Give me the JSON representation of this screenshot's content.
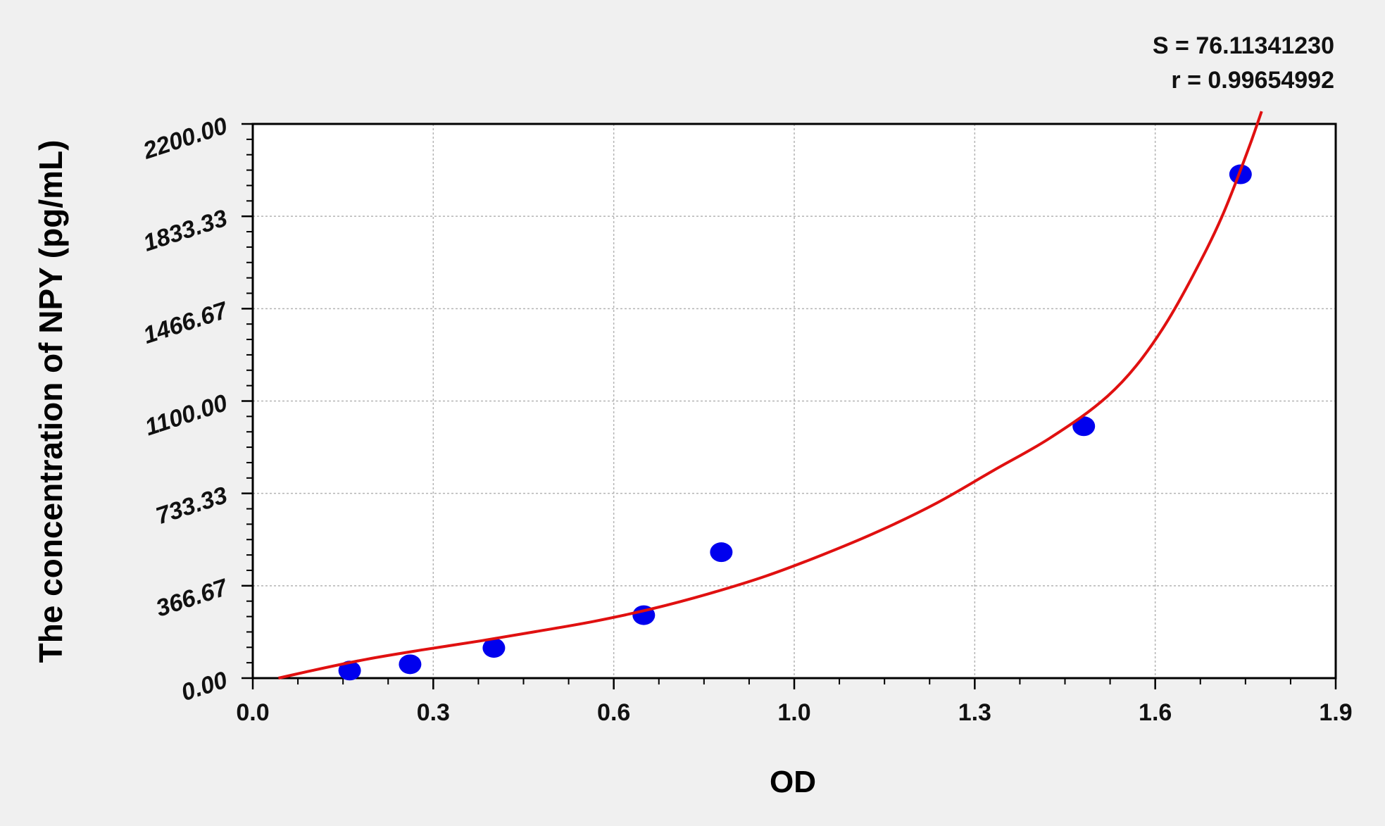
{
  "chart_data": {
    "type": "scatter",
    "title": "",
    "xlabel": "OD",
    "ylabel": "The concentration of NPY (pg/mL)",
    "xlim": [
      0.0,
      1.9
    ],
    "ylim": [
      0,
      2200
    ],
    "x_ticks": [
      0.0,
      0.3,
      0.6,
      1.0,
      1.3,
      1.6,
      1.9
    ],
    "x_tick_labels": [
      "0.0",
      "0.3",
      "0.6",
      "1.0",
      "1.3",
      "1.6",
      "1.9"
    ],
    "x_tick_positions": [
      0.0,
      0.3166667,
      0.6333333,
      0.95,
      1.2666667,
      1.5833333,
      1.9
    ],
    "y_ticks": [
      0,
      366.67,
      733.33,
      1100,
      1466.67,
      1833.33,
      2200
    ],
    "y_tick_labels": [
      "0.00",
      "366.67",
      "733.33",
      "1100.00",
      "1466.67",
      "1833.33",
      "2200.00"
    ],
    "grid": true,
    "series": [
      {
        "kind": "points",
        "color": "#0000ee",
        "x": [
          0.17,
          0.276,
          0.423,
          0.686,
          0.822,
          1.458,
          1.733
        ],
        "y": [
          30,
          55,
          120,
          250,
          500,
          1000,
          2000
        ]
      },
      {
        "kind": "fit-curve",
        "color": "#e01010",
        "x": [
          0.045,
          0.1,
          0.2,
          0.3,
          0.4,
          0.5,
          0.6,
          0.7,
          0.8,
          0.9,
          1.0,
          1.1,
          1.2,
          1.3,
          1.4,
          1.5,
          1.55,
          1.6,
          1.65,
          1.7,
          1.75,
          1.77
        ],
        "y": [
          0,
          28,
          75,
          113,
          148,
          186,
          226,
          275,
          335,
          405,
          490,
          585,
          695,
          825,
          955,
          1120,
          1240,
          1400,
          1600,
          1830,
          2120,
          2250
        ]
      }
    ],
    "annotations": [
      "S = 76.11341230",
      "r = 0.99654992"
    ]
  },
  "colors": {
    "background": "#f0f0f0",
    "plot_area": "#ffffff",
    "points": "#0000ee",
    "curve": "#e01010",
    "grid": "#b4b4b4"
  }
}
